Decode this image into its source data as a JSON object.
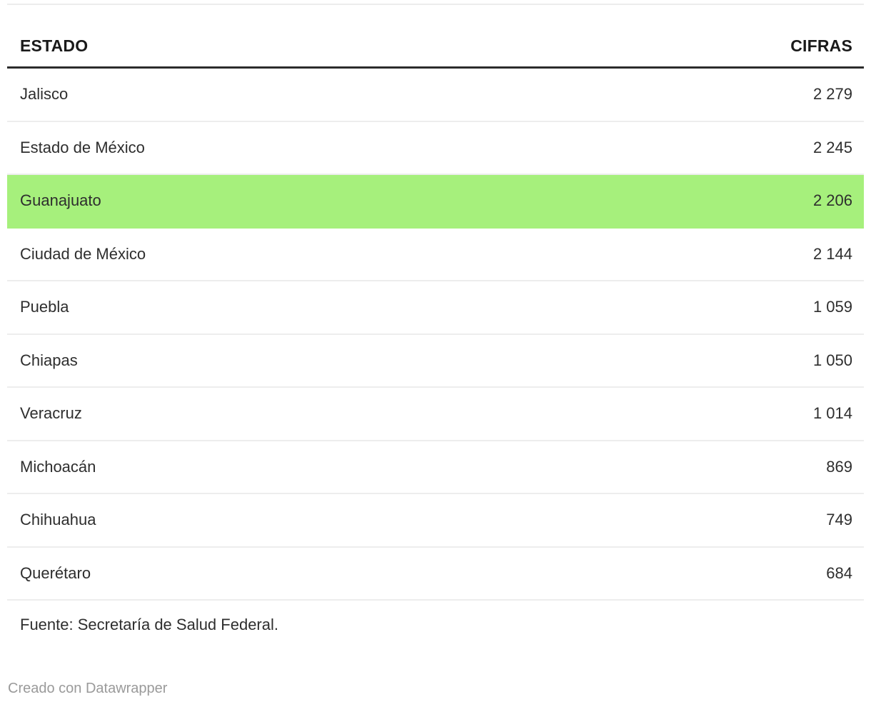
{
  "chart_data": {
    "type": "table",
    "columns": [
      "ESTADO",
      "CIFRAS"
    ],
    "rows": [
      [
        "Jalisco",
        2279
      ],
      [
        "Estado de México",
        2245
      ],
      [
        "Guanajuato",
        2206
      ],
      [
        "Ciudad de México",
        2144
      ],
      [
        "Puebla",
        1059
      ],
      [
        "Chiapas",
        1050
      ],
      [
        "Veracruz",
        1014
      ],
      [
        "Michoacán",
        869
      ],
      [
        "Chihuahua",
        749
      ],
      [
        "Querétaro",
        684
      ]
    ],
    "highlighted_row": "Guanajuato",
    "source": "Fuente: Secretaría de Salud Federal.",
    "attribution": "Creado con Datawrapper",
    "layout_hints": {
      "grid": "horizontal row dividers",
      "header_rule": "thick dark line under header",
      "value_alignment": "right"
    }
  },
  "table": {
    "header": {
      "estado": "ESTADO",
      "cifras": "CIFRAS"
    },
    "rows": [
      {
        "estado": "Jalisco",
        "cifras": "2 279",
        "highlighted": false
      },
      {
        "estado": "Estado de México",
        "cifras": "2 245",
        "highlighted": false
      },
      {
        "estado": "Guanajuato",
        "cifras": "2 206",
        "highlighted": true
      },
      {
        "estado": "Ciudad de México",
        "cifras": "2 144",
        "highlighted": false
      },
      {
        "estado": "Puebla",
        "cifras": "1 059",
        "highlighted": false
      },
      {
        "estado": "Chiapas",
        "cifras": "1 050",
        "highlighted": false
      },
      {
        "estado": "Veracruz",
        "cifras": "1 014",
        "highlighted": false
      },
      {
        "estado": "Michoacán",
        "cifras": "869",
        "highlighted": false
      },
      {
        "estado": "Chihuahua",
        "cifras": "749",
        "highlighted": false
      },
      {
        "estado": "Querétaro",
        "cifras": "684",
        "highlighted": false
      }
    ]
  },
  "footer": {
    "source": "Fuente: Secretaría de Salud Federal.",
    "attribution": "Creado con Datawrapper"
  },
  "colors": {
    "highlight_green": "#a6f07c",
    "header_rule": "#2b2b2b",
    "row_divider": "#ededed",
    "text_primary": "#2e2e2e",
    "text_attribution": "#9a9a9a"
  }
}
